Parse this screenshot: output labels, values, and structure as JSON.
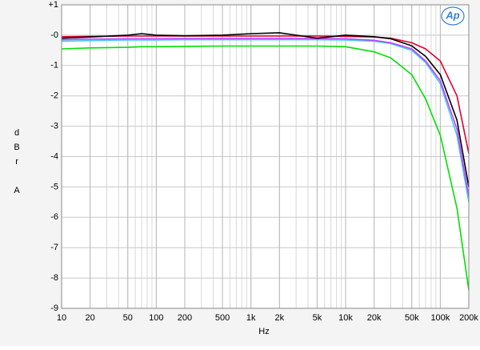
{
  "chart_data": {
    "type": "line",
    "x_label": "Hz",
    "y_label": "dBr A",
    "logo": "Ap",
    "x": [
      10,
      20,
      50,
      70,
      100,
      200,
      500,
      1000,
      2000,
      5000,
      10000,
      20000,
      30000,
      50000,
      70000,
      100000,
      150000,
      200000
    ],
    "series": [
      {
        "color": "#00e000",
        "values": [
          -0.45,
          -0.42,
          -0.4,
          -0.38,
          -0.38,
          -0.37,
          -0.36,
          -0.36,
          -0.36,
          -0.36,
          -0.38,
          -0.55,
          -0.75,
          -1.3,
          -2.1,
          -3.3,
          -5.7,
          -8.4
        ]
      },
      {
        "color": "#40c8f0",
        "values": [
          -0.2,
          -0.18,
          -0.16,
          -0.16,
          -0.16,
          -0.15,
          -0.15,
          -0.15,
          -0.15,
          -0.15,
          -0.16,
          -0.2,
          -0.28,
          -0.5,
          -0.9,
          -1.6,
          -3.3,
          -5.5
        ]
      },
      {
        "color": "#c040ff",
        "values": [
          -0.15,
          -0.13,
          -0.12,
          -0.12,
          -0.12,
          -0.11,
          -0.11,
          -0.11,
          -0.11,
          -0.11,
          -0.12,
          -0.17,
          -0.25,
          -0.45,
          -0.85,
          -1.5,
          -3.1,
          -5.3
        ]
      },
      {
        "color": "#e00030",
        "values": [
          -0.05,
          -0.04,
          -0.03,
          -0.03,
          -0.03,
          -0.03,
          -0.03,
          -0.03,
          -0.03,
          -0.03,
          -0.04,
          -0.06,
          -0.1,
          -0.25,
          -0.45,
          -0.85,
          -2.0,
          -3.9
        ]
      },
      {
        "color": "#000000",
        "values": [
          -0.1,
          -0.06,
          0.0,
          0.05,
          0.0,
          -0.02,
          0.0,
          0.05,
          0.08,
          -0.1,
          0.0,
          -0.05,
          -0.12,
          -0.35,
          -0.7,
          -1.3,
          -2.8,
          -5.0
        ]
      }
    ],
    "xlim": [
      10,
      200000
    ],
    "ylim": [
      -9,
      1
    ],
    "xlog": true,
    "grid": true,
    "xticks": [
      10,
      20,
      50,
      100,
      200,
      500,
      {
        "value": 1000,
        "label": "1k"
      },
      {
        "value": 2000,
        "label": "2k"
      },
      {
        "value": 5000,
        "label": "5k"
      },
      {
        "value": 10000,
        "label": "10k"
      },
      {
        "value": 20000,
        "label": "20k"
      },
      {
        "value": 50000,
        "label": "50k"
      },
      {
        "value": 100000,
        "label": "100k"
      },
      {
        "value": 200000,
        "label": "200k"
      }
    ],
    "yticks": [
      {
        "value": 1,
        "label": "+1"
      },
      {
        "value": 0,
        "label": "-0"
      },
      -1,
      -2,
      -3,
      -4,
      -5,
      -6,
      -7,
      -8,
      -9
    ]
  }
}
